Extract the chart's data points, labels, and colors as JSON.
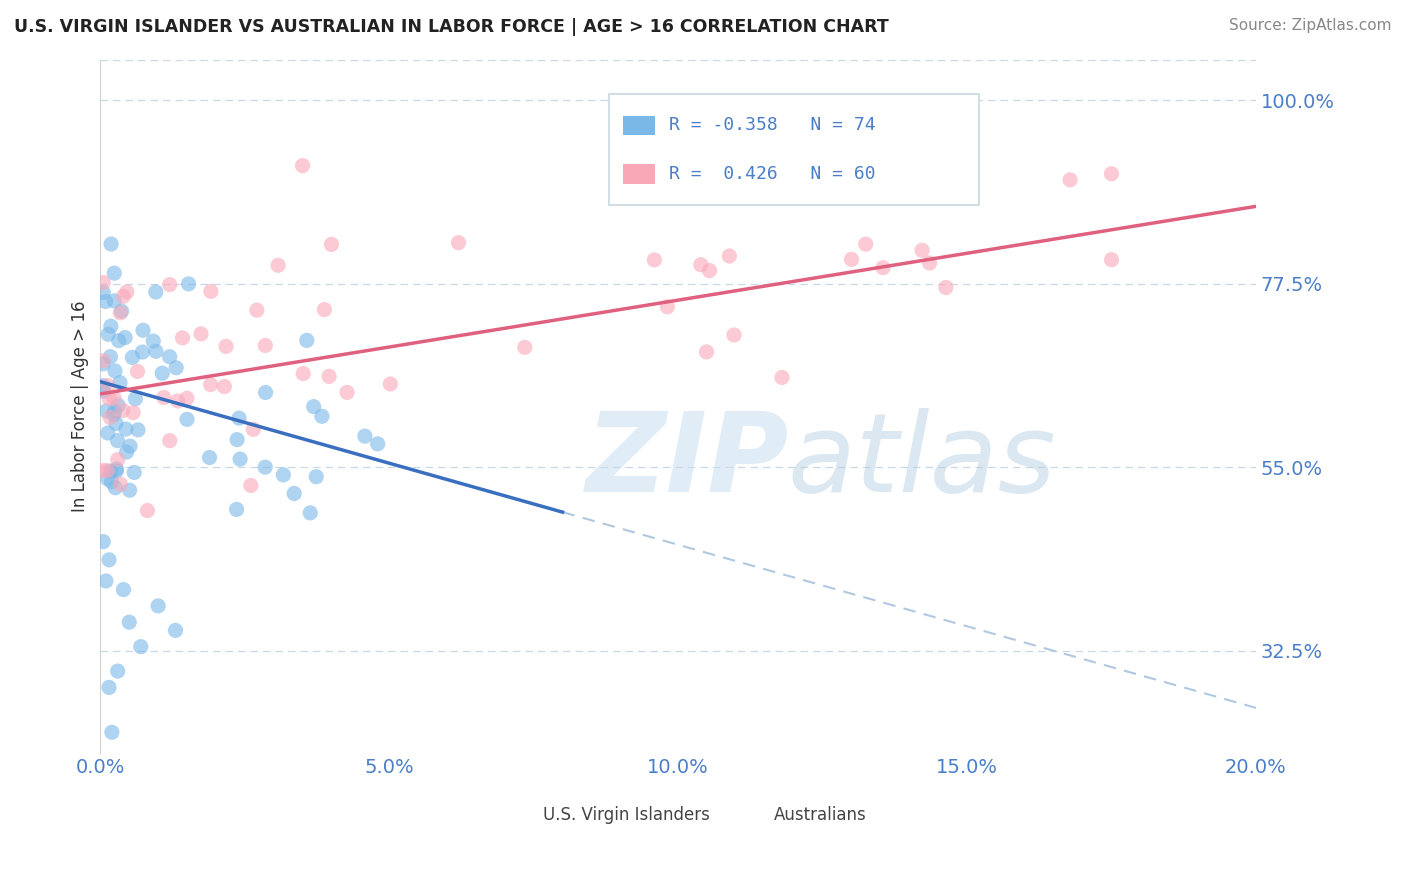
{
  "title": "U.S. VIRGIN ISLANDER VS AUSTRALIAN IN LABOR FORCE | AGE > 16 CORRELATION CHART",
  "source": "Source: ZipAtlas.com",
  "ylabel": "In Labor Force | Age > 16",
  "xlim": [
    0.0,
    20.0
  ],
  "ylim": [
    20.0,
    105.0
  ],
  "ytick_vals": [
    32.5,
    55.0,
    77.5,
    100.0
  ],
  "xtick_vals": [
    0.0,
    5.0,
    10.0,
    15.0,
    20.0
  ],
  "blue_R": -0.358,
  "blue_N": 74,
  "pink_R": 0.426,
  "pink_N": 60,
  "blue_scatter_color": "#7ab8e8",
  "pink_scatter_color": "#f9a8b8",
  "blue_line_color": "#3a6fc0",
  "pink_line_color": "#e06080",
  "dash_line_color": "#b0c8e0",
  "tick_color": "#4a7ec8",
  "grid_color": "#c8d8e8",
  "title_color": "#222222",
  "source_color": "#888888",
  "ylabel_color": "#333333",
  "legend_labels": [
    "U.S. Virgin Islanders",
    "Australians"
  ],
  "blue_line_x0": 0.0,
  "blue_line_y0": 65.5,
  "blue_line_x1": 8.0,
  "blue_line_y1": 49.5,
  "blue_dash_x0": 8.0,
  "blue_dash_y0": 49.5,
  "blue_dash_x1": 20.0,
  "blue_dash_y1": 25.5,
  "pink_line_x0": 0.0,
  "pink_line_y0": 64.0,
  "pink_line_x1": 20.0,
  "pink_line_y1": 87.0,
  "watermark_zip": "ZIP",
  "watermark_atlas": "atlas"
}
